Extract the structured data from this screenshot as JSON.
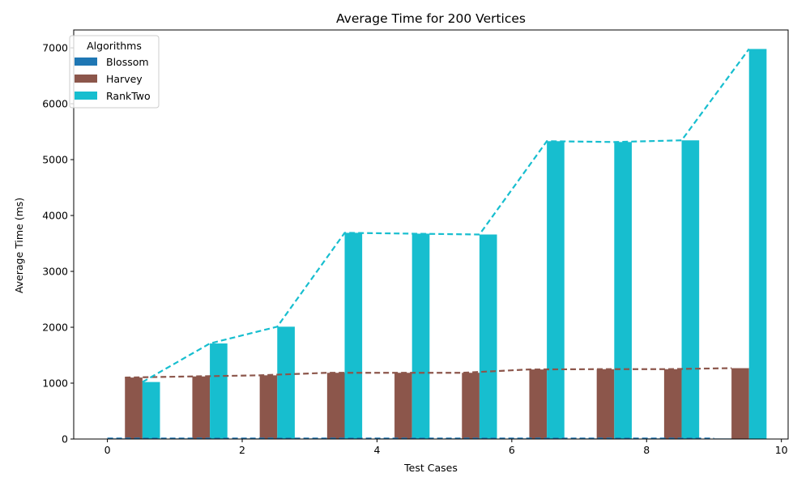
{
  "chart_data": {
    "type": "bar",
    "title": "Average Time for 200 Vertices",
    "xlabel": "Test Cases",
    "ylabel": "Average Time (ms)",
    "xlim": [
      -0.5,
      10.1
    ],
    "ylim": [
      0,
      7320
    ],
    "xticks": [
      0,
      2,
      4,
      6,
      8,
      10
    ],
    "yticks": [
      0,
      1000,
      2000,
      3000,
      4000,
      5000,
      6000,
      7000
    ],
    "x": [
      0,
      1,
      2,
      3,
      4,
      5,
      6,
      7,
      8,
      9
    ],
    "bar_width": 0.26,
    "legend": {
      "title": "Algorithms",
      "placement": "top-left"
    },
    "series": [
      {
        "name": "Blossom",
        "offset": 0,
        "color": "#1f77b4",
        "values": [
          10,
          10,
          10,
          10,
          10,
          10,
          10,
          10,
          10,
          10
        ]
      },
      {
        "name": "Harvey",
        "offset": 0.26,
        "color": "#8c564b",
        "values": [
          1100,
          1120,
          1140,
          1185,
          1185,
          1185,
          1245,
          1250,
          1250,
          1268
        ]
      },
      {
        "name": "RankTwo",
        "offset": 0.52,
        "color": "#17becf",
        "values": [
          1020,
          1710,
          2010,
          3690,
          3675,
          3660,
          5330,
          5315,
          5345,
          6980
        ]
      }
    ]
  }
}
